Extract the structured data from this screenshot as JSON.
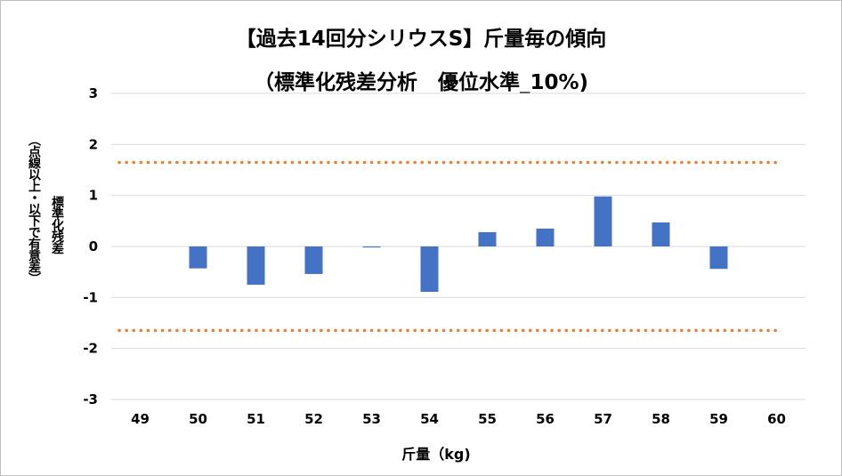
{
  "chart_data": {
    "type": "bar",
    "title": "【過去14回分シリウスS】斤量毎の傾向",
    "subtitle": "（標準化残差分析　優位水準_10%)",
    "xlabel": "斤量（kg)",
    "ylabel_lines": [
      "標準化残差",
      "（点線以上・以下で有意差）"
    ],
    "categories": [
      "49",
      "50",
      "51",
      "52",
      "53",
      "54",
      "55",
      "56",
      "57",
      "58",
      "59",
      "60"
    ],
    "values": [
      null,
      -0.43,
      -0.75,
      -0.54,
      -0.02,
      -0.89,
      0.28,
      0.35,
      0.98,
      0.47,
      -0.44,
      null
    ],
    "ylim": [
      -3,
      3
    ],
    "yticks": [
      3,
      2,
      1,
      0,
      -1,
      -2,
      -3
    ],
    "reference_lines": [
      1.645,
      -1.645
    ],
    "grid": true,
    "colors": {
      "bar": "#4472c4",
      "reference_line": "#ed7d31",
      "grid": "#d9d9d9"
    }
  }
}
